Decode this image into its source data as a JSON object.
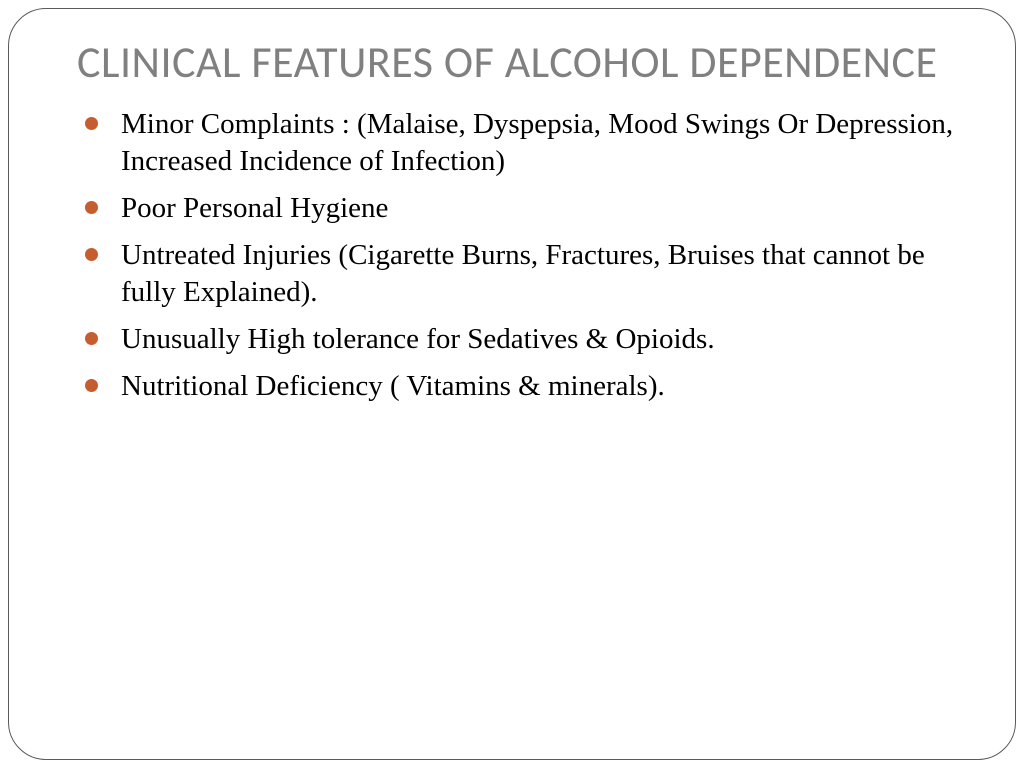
{
  "title": "CLINICAL FEATURES OF ALCOHOL DEPENDENCE",
  "bullets": [
    "Minor Complaints : (Malaise, Dyspepsia, Mood Swings Or Depression, Increased Incidence of Infection)",
    " Poor Personal Hygiene",
    "Untreated Injuries (Cigarette Burns, Fractures, Bruises that cannot be fully Explained).",
    "Unusually High tolerance for Sedatives & Opioids.",
    "Nutritional Deficiency ( Vitamins & minerals)."
  ],
  "colors": {
    "title_color": "#808080",
    "bullet_color": "#c65d2e",
    "text_color": "#000000",
    "border_color": "#5a5a5a",
    "background": "#ffffff"
  },
  "fonts": {
    "title_family": "Calibri",
    "title_size_pt": 33,
    "body_family": "Garamond",
    "body_size_pt": 22
  }
}
